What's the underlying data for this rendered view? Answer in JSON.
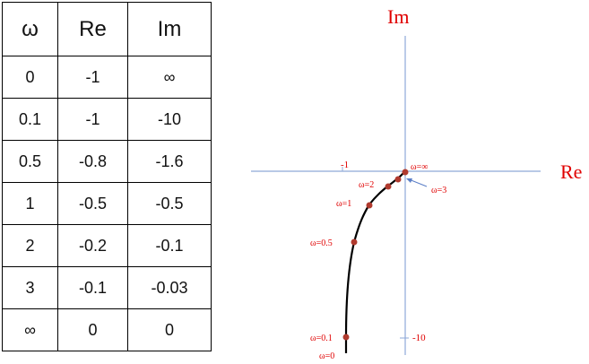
{
  "table": {
    "headers": [
      "ω",
      "Re",
      "Im"
    ],
    "rows": [
      [
        "0",
        "-1",
        "∞"
      ],
      [
        "0.1",
        "-1",
        "-10"
      ],
      [
        "0.5",
        "-0.8",
        "-1.6"
      ],
      [
        "1",
        "-0.5",
        "-0.5"
      ],
      [
        "2",
        "-0.2",
        "-0.1"
      ],
      [
        "3",
        "-0.1",
        "-0.03"
      ],
      [
        "∞",
        "0",
        "0"
      ]
    ]
  },
  "plot": {
    "im_axis_label": "Im",
    "re_axis_label": "Re",
    "re_tick_label": "-1",
    "im_tick_label": "-10",
    "axis_color": "#8ea9d8",
    "label_color": "#e00000",
    "point_color": "#b03a2e",
    "curve_color": "#000000",
    "point_labels": [
      {
        "text": "ω=∞",
        "re": 0,
        "im": 0
      },
      {
        "text": "ω=3",
        "re": -0.1,
        "im": -0.03
      },
      {
        "text": "ω=2",
        "re": -0.2,
        "im": -0.1
      },
      {
        "text": "ω=1",
        "re": -0.5,
        "im": -0.5
      },
      {
        "text": "ω=0.5",
        "re": -0.8,
        "im": -1.6
      },
      {
        "text": "ω=0.1",
        "re": -1,
        "im": -10
      },
      {
        "text": "ω=0",
        "re": -1,
        "im": null
      }
    ]
  }
}
